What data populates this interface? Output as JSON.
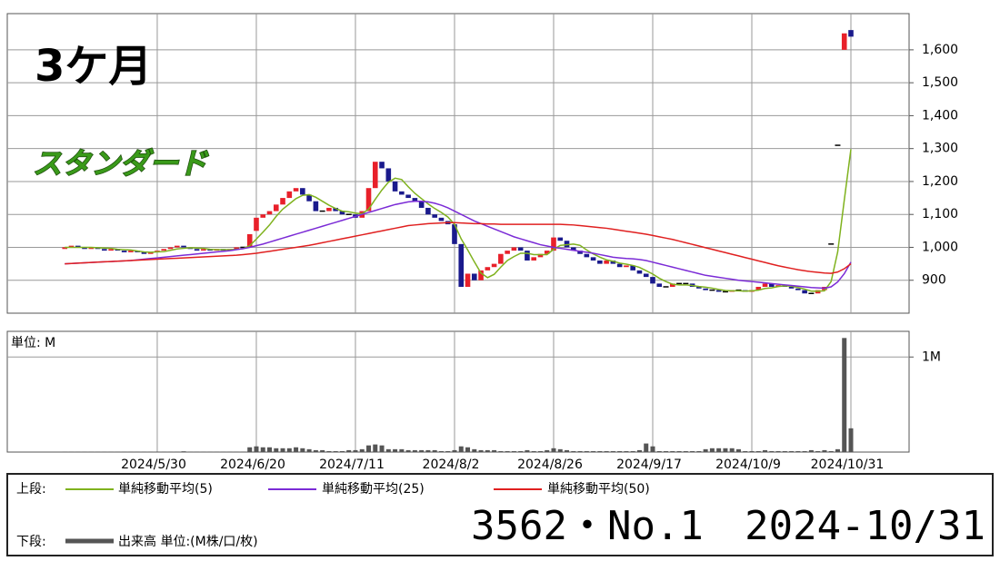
{
  "chart_data": [
    {
      "type": "candlestick",
      "title": "3ケ月",
      "subtitle": "スタンダード",
      "legend_label": "上段:",
      "categories": [
        null,
        null,
        null,
        null,
        null,
        null,
        null,
        null,
        null,
        null,
        null,
        null,
        null,
        null,
        "2024/5/30",
        null,
        null,
        null,
        null,
        null,
        null,
        null,
        null,
        null,
        null,
        null,
        null,
        null,
        null,
        "2024/6/20",
        null,
        null,
        null,
        null,
        null,
        null,
        null,
        null,
        null,
        null,
        null,
        null,
        null,
        null,
        "2024/7/11",
        null,
        null,
        null,
        null,
        null,
        null,
        null,
        null,
        null,
        null,
        null,
        null,
        null,
        null,
        "2024/8/2",
        null,
        null,
        null,
        null,
        null,
        null,
        null,
        null,
        null,
        null,
        null,
        null,
        null,
        null,
        "2024/8/26",
        null,
        null,
        null,
        null,
        null,
        null,
        null,
        null,
        null,
        null,
        null,
        null,
        null,
        null,
        "2024/9/17",
        null,
        null,
        null,
        null,
        null,
        null,
        null,
        null,
        null,
        null,
        null,
        null,
        null,
        null,
        "2024/10/9",
        null,
        null,
        null,
        null,
        null,
        null,
        null,
        null,
        null,
        null,
        null,
        null,
        null,
        null,
        "2024/10/31"
      ],
      "open": [
        995,
        1000,
        1005,
        1000,
        995,
        1000,
        995,
        990,
        995,
        990,
        985,
        990,
        985,
        980,
        985,
        990,
        995,
        1000,
        1005,
        1000,
        995,
        990,
        995,
        990,
        995,
        990,
        995,
        1000,
        1000,
        1050,
        1090,
        1100,
        1110,
        1130,
        1150,
        1170,
        1180,
        1160,
        1140,
        1110,
        1110,
        1120,
        1110,
        1100,
        1100,
        1090,
        1110,
        1180,
        1260,
        1240,
        1200,
        1170,
        1160,
        1150,
        1140,
        1120,
        1100,
        1090,
        1080,
        1070,
        1010,
        880,
        920,
        900,
        930,
        940,
        950,
        980,
        990,
        1000,
        990,
        960,
        970,
        980,
        990,
        1030,
        1020,
        1000,
        990,
        980,
        970,
        960,
        950,
        960,
        950,
        940,
        945,
        930,
        920,
        910,
        890,
        880,
        880,
        890,
        890,
        890,
        880,
        875,
        870,
        870,
        865,
        865,
        870,
        870,
        865,
        870,
        880,
        890,
        880,
        885,
        880,
        875,
        870,
        860,
        860,
        870,
        1010,
        1310,
        1600,
        1660
      ],
      "close": [
        1000,
        1005,
        1000,
        995,
        1000,
        995,
        990,
        995,
        990,
        985,
        990,
        985,
        980,
        985,
        990,
        995,
        1000,
        1005,
        1000,
        995,
        990,
        995,
        990,
        995,
        990,
        995,
        1000,
        1000,
        1040,
        1090,
        1100,
        1110,
        1130,
        1150,
        1170,
        1180,
        1160,
        1140,
        1110,
        1110,
        1120,
        1110,
        1100,
        1100,
        1090,
        1110,
        1180,
        1260,
        1240,
        1200,
        1170,
        1160,
        1150,
        1140,
        1120,
        1100,
        1090,
        1080,
        1070,
        1010,
        880,
        920,
        900,
        930,
        940,
        950,
        980,
        990,
        1000,
        990,
        960,
        970,
        980,
        990,
        1030,
        1020,
        1000,
        990,
        980,
        970,
        960,
        950,
        960,
        950,
        940,
        945,
        930,
        920,
        910,
        890,
        880,
        880,
        890,
        890,
        890,
        880,
        875,
        870,
        870,
        865,
        865,
        870,
        870,
        865,
        870,
        880,
        890,
        880,
        885,
        880,
        875,
        870,
        860,
        860,
        870,
        880,
        1010,
        1310,
        1650,
        1640
      ],
      "up_color": "#e8202a",
      "down_color": "#1a1a8c",
      "series": [
        {
          "name": "単純移動平均(5)",
          "color": "#7fb21e",
          "values": [
            1000,
            1000,
            1000,
            1000,
            1000,
            999,
            998,
            997,
            994,
            993,
            992,
            989,
            986,
            985,
            986,
            987,
            991,
            995,
            997,
            999,
            998,
            997,
            994,
            993,
            993,
            993,
            994,
            996,
            1005,
            1025,
            1046,
            1068,
            1094,
            1116,
            1132,
            1148,
            1158,
            1160,
            1152,
            1140,
            1128,
            1118,
            1110,
            1108,
            1104,
            1102,
            1116,
            1146,
            1174,
            1198,
            1210,
            1206,
            1184,
            1164,
            1148,
            1132,
            1118,
            1106,
            1092,
            1070,
            1026,
            992,
            956,
            922,
            908,
            918,
            940,
            960,
            972,
            982,
            982,
            978,
            978,
            978,
            994,
            1006,
            1008,
            1010,
            1006,
            992,
            980,
            970,
            962,
            958,
            952,
            949,
            945,
            939,
            929,
            919,
            906,
            896,
            888,
            886,
            886,
            884,
            881,
            879,
            876,
            872,
            869,
            868,
            868,
            867,
            868,
            870,
            875,
            877,
            881,
            883,
            882,
            878,
            873,
            867,
            867,
            868,
            896,
            986,
            1144,
            1298
          ]
        },
        {
          "name": "単純移動平均(25)",
          "color": "#7b2bd6",
          "values": [
            950,
            951,
            952,
            953,
            954,
            955,
            956,
            957,
            958,
            959,
            960,
            962,
            964,
            966,
            968,
            970,
            972,
            974,
            976,
            978,
            980,
            982,
            984,
            986,
            988,
            990,
            993,
            996,
            1000,
            1005,
            1010,
            1016,
            1022,
            1028,
            1034,
            1040,
            1046,
            1052,
            1058,
            1064,
            1070,
            1076,
            1082,
            1088,
            1094,
            1100,
            1106,
            1112,
            1118,
            1124,
            1130,
            1134,
            1138,
            1140,
            1140,
            1138,
            1134,
            1128,
            1120,
            1110,
            1100,
            1090,
            1080,
            1072,
            1064,
            1056,
            1048,
            1040,
            1032,
            1026,
            1020,
            1014,
            1008,
            1004,
            1000,
            997,
            994,
            991,
            988,
            985,
            982,
            978,
            974,
            970,
            968,
            966,
            965,
            963,
            960,
            955,
            950,
            945,
            940,
            935,
            930,
            925,
            920,
            915,
            912,
            909,
            906,
            903,
            900,
            898,
            896,
            894,
            892,
            890,
            888,
            886,
            884,
            882,
            880,
            878,
            877,
            876,
            880,
            895,
            920,
            955
          ]
        },
        {
          "name": "単純移動平均(50)",
          "color": "#e02020",
          "values": [
            950,
            951,
            952,
            953,
            954,
            955,
            956,
            957,
            958,
            959,
            960,
            961,
            962,
            963,
            964,
            965,
            966,
            967,
            968,
            969,
            970,
            971,
            972,
            973,
            974,
            975,
            976,
            978,
            980,
            982,
            985,
            988,
            991,
            994,
            997,
            1000,
            1003,
            1006,
            1010,
            1014,
            1018,
            1022,
            1026,
            1030,
            1034,
            1038,
            1042,
            1046,
            1050,
            1054,
            1058,
            1062,
            1066,
            1068,
            1070,
            1072,
            1073,
            1074,
            1075,
            1075,
            1074,
            1073,
            1072,
            1072,
            1071,
            1071,
            1070,
            1070,
            1070,
            1070,
            1070,
            1070,
            1070,
            1070,
            1070,
            1070,
            1069,
            1068,
            1066,
            1064,
            1062,
            1060,
            1058,
            1055,
            1052,
            1049,
            1046,
            1043,
            1040,
            1036,
            1032,
            1028,
            1024,
            1019,
            1014,
            1009,
            1004,
            999,
            994,
            989,
            984,
            979,
            974,
            969,
            964,
            959,
            954,
            949,
            944,
            940,
            936,
            932,
            929,
            926,
            924,
            922,
            921,
            925,
            935,
            950
          ]
        }
      ],
      "ylim": [
        800,
        1710
      ],
      "yticks": [
        900,
        {
          "value": 1000,
          "label": "1,000"
        },
        {
          "value": 1100,
          "label": "1,100"
        },
        {
          "value": 1200,
          "label": "1,200"
        },
        {
          "value": 1300,
          "label": "1,300"
        },
        {
          "value": 1400,
          "label": "1,400"
        },
        {
          "value": 1500,
          "label": "1,500"
        },
        {
          "value": 1600,
          "label": "1,600"
        }
      ],
      "grid": true
    },
    {
      "type": "bar",
      "y_label": "単位: M",
      "legend_label": "下段:",
      "series": [
        {
          "name": "出来高 単位:(M株/口/枚)",
          "color": "#555555",
          "values": [
            0.005,
            0.005,
            0.005,
            0.005,
            0.005,
            0.005,
            0.005,
            0.005,
            0.005,
            0.005,
            0.005,
            0.005,
            0.005,
            0.005,
            0.005,
            0.005,
            0.005,
            0.005,
            0.008,
            0.005,
            0.005,
            0.005,
            0.005,
            0.005,
            0.005,
            0.005,
            0.005,
            0.005,
            0.05,
            0.06,
            0.05,
            0.05,
            0.04,
            0.04,
            0.04,
            0.05,
            0.04,
            0.03,
            0.02,
            0.02,
            0.01,
            0.01,
            0.01,
            0.02,
            0.02,
            0.03,
            0.07,
            0.08,
            0.07,
            0.03,
            0.03,
            0.03,
            0.02,
            0.02,
            0.02,
            0.02,
            0.02,
            0.01,
            0.01,
            0.02,
            0.06,
            0.05,
            0.03,
            0.02,
            0.02,
            0.02,
            0.01,
            0.01,
            0.01,
            0.01,
            0.02,
            0.01,
            0.01,
            0.02,
            0.04,
            0.03,
            0.02,
            0.01,
            0.01,
            0.01,
            0.01,
            0.01,
            0.01,
            0.01,
            0.01,
            0.01,
            0.01,
            0.02,
            0.09,
            0.06,
            0.01,
            0.01,
            0.01,
            0.01,
            0.01,
            0.01,
            0.01,
            0.03,
            0.04,
            0.04,
            0.04,
            0.04,
            0.03,
            0.01,
            0.01,
            0.01,
            0.02,
            0.01,
            0.01,
            0.01,
            0.01,
            0.01,
            0.01,
            0.02,
            0.01,
            0.02,
            0.01,
            0.03,
            1.2,
            0.25
          ]
        }
      ],
      "ylim": [
        0,
        1.27
      ],
      "yticks": [
        {
          "value": 1,
          "label": "1M"
        }
      ],
      "grid": true
    }
  ],
  "footer": {
    "code": "3562・No.1",
    "date": "2024-10/31"
  }
}
